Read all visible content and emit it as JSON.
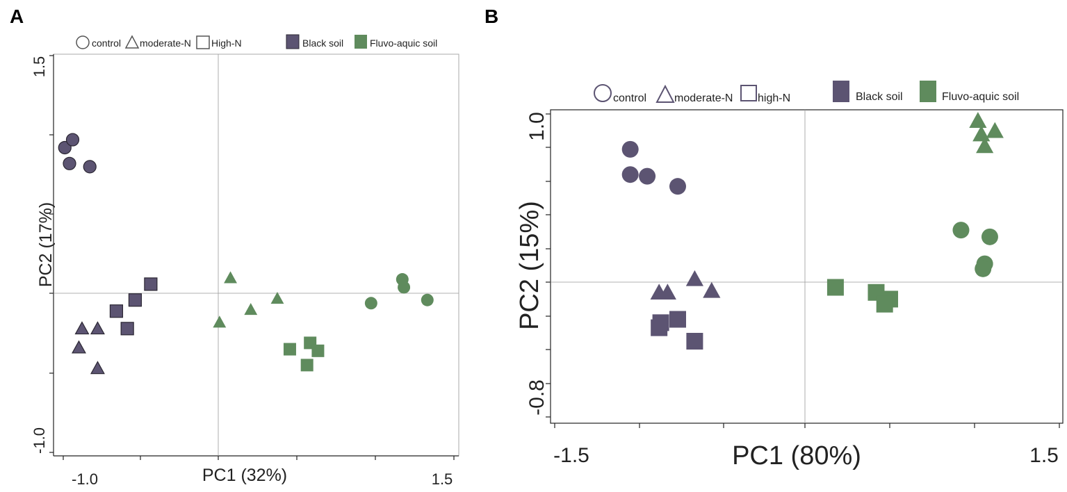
{
  "colors": {
    "black_soil": "#5c5472",
    "fluvo_aquic": "#5f8b5d",
    "stroke": "#2b2733",
    "outline": "#5c5472"
  },
  "chart_data": [
    {
      "type": "scatter",
      "panel_label": "A",
      "title": "",
      "xlabel": "PC1 (32%)",
      "ylabel": "PC2 (17%)",
      "xlim": [
        -1.0,
        1.5
      ],
      "ylim": [
        -1.0,
        1.5
      ],
      "xtick_labels": [
        "-1.0",
        "1.5"
      ],
      "ytick_labels": [
        "1.5",
        "-1.0"
      ],
      "legend": {
        "shapes": [
          "control",
          "moderate-N",
          "High-N"
        ],
        "soils": [
          "Black soil",
          "Fluvo-aquic soil"
        ]
      },
      "series": [
        {
          "name": "Black soil control",
          "soil": "black",
          "shape": "circle",
          "points": [
            [
              -0.99,
              0.92
            ],
            [
              -0.94,
              0.97
            ],
            [
              -0.96,
              0.82
            ],
            [
              -0.83,
              0.8
            ]
          ]
        },
        {
          "name": "Black soil moderate-N",
          "soil": "black",
          "shape": "triangle",
          "points": [
            [
              -0.88,
              -0.22
            ],
            [
              -0.78,
              -0.22
            ],
            [
              -0.9,
              -0.34
            ],
            [
              -0.78,
              -0.47
            ]
          ]
        },
        {
          "name": "Black soil high-N",
          "soil": "black",
          "shape": "square",
          "points": [
            [
              -0.44,
              0.06
            ],
            [
              -0.54,
              -0.04
            ],
            [
              -0.66,
              -0.11
            ],
            [
              -0.59,
              -0.22
            ]
          ]
        },
        {
          "name": "Fluvo-aquic soil control",
          "soil": "fluvo",
          "shape": "circle",
          "points": [
            [
              1.17,
              0.09
            ],
            [
              1.18,
              0.04
            ],
            [
              0.97,
              -0.06
            ],
            [
              1.33,
              -0.04
            ]
          ]
        },
        {
          "name": "Fluvo-aquic soil moderate-N",
          "soil": "fluvo",
          "shape": "triangle",
          "points": [
            [
              0.07,
              0.1
            ],
            [
              0.0,
              -0.18
            ],
            [
              0.2,
              -0.1
            ],
            [
              0.37,
              -0.03
            ]
          ]
        },
        {
          "name": "Fluvo-aquic soil high-N",
          "soil": "fluvo",
          "shape": "square",
          "points": [
            [
              0.45,
              -0.35
            ],
            [
              0.58,
              -0.31
            ],
            [
              0.63,
              -0.36
            ],
            [
              0.56,
              -0.45
            ]
          ]
        }
      ]
    },
    {
      "type": "scatter",
      "panel_label": "B",
      "title": "",
      "xlabel": "PC1 (80%)",
      "ylabel": "PC2 (15%)",
      "xlim": [
        -1.5,
        1.5
      ],
      "ylim": [
        -0.8,
        1.0
      ],
      "xtick_labels": [
        "-1.5",
        "1.5"
      ],
      "ytick_labels": [
        "1.0",
        "-0.8"
      ],
      "legend": {
        "shapes": [
          "control",
          "moderate-N",
          "high-N"
        ],
        "soils": [
          "Black soil",
          "Fluvo-aquic soil"
        ]
      },
      "series": [
        {
          "name": "Black soil control",
          "soil": "black",
          "shape": "circle",
          "points": [
            [
              -1.03,
              0.79
            ],
            [
              -1.03,
              0.64
            ],
            [
              -0.93,
              0.63
            ],
            [
              -0.75,
              0.57
            ]
          ]
        },
        {
          "name": "Black soil moderate-N",
          "soil": "black",
          "shape": "triangle",
          "points": [
            [
              -0.65,
              0.02
            ],
            [
              -0.86,
              -0.06
            ],
            [
              -0.81,
              -0.06
            ],
            [
              -0.55,
              -0.05
            ]
          ]
        },
        {
          "name": "Black soil high-N",
          "soil": "black",
          "shape": "square",
          "points": [
            [
              -0.85,
              -0.24
            ],
            [
              -0.75,
              -0.22
            ],
            [
              -0.86,
              -0.27
            ],
            [
              -0.65,
              -0.35
            ]
          ]
        },
        {
          "name": "Fluvo-aquic soil control",
          "soil": "fluvo",
          "shape": "circle",
          "points": [
            [
              0.92,
              0.31
            ],
            [
              1.09,
              0.27
            ],
            [
              1.06,
              0.11
            ],
            [
              1.05,
              0.08
            ]
          ]
        },
        {
          "name": "Fluvo-aquic soil moderate-N",
          "soil": "fluvo",
          "shape": "triangle",
          "points": [
            [
              1.02,
              0.96
            ],
            [
              1.04,
              0.88
            ],
            [
              1.12,
              0.9
            ],
            [
              1.06,
              0.81
            ]
          ]
        },
        {
          "name": "Fluvo-aquic soil high-N",
          "soil": "fluvo",
          "shape": "square",
          "points": [
            [
              0.18,
              -0.03
            ],
            [
              0.42,
              -0.06
            ],
            [
              0.5,
              -0.1
            ],
            [
              0.47,
              -0.13
            ]
          ]
        }
      ]
    }
  ]
}
